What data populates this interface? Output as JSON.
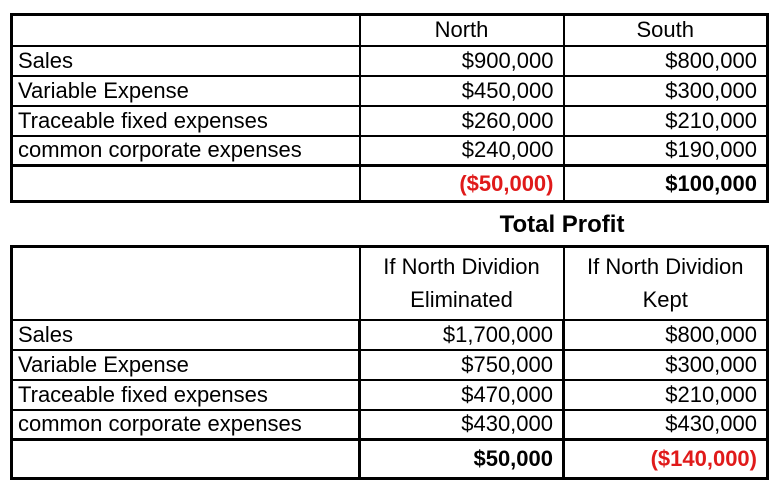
{
  "colors": {
    "negative_red": "#e01a1a",
    "text": "#000000",
    "border": "#000000",
    "background": "#ffffff"
  },
  "segment_table": {
    "column_headers": {
      "north": "North",
      "south": "South"
    },
    "rows": [
      {
        "label": "Sales",
        "north": "$900,000",
        "south": "$800,000"
      },
      {
        "label": "Variable Expense",
        "north": "$450,000",
        "south": "$300,000"
      },
      {
        "label": "Traceable fixed expenses",
        "north": "$260,000",
        "south": "$210,000"
      },
      {
        "label": "common corporate expenses",
        "north": "$240,000",
        "south": "$190,000"
      }
    ],
    "total_row": {
      "north": "($50,000)",
      "south": "$100,000"
    }
  },
  "total_profit_table": {
    "title": "Total Profit",
    "column_headers": {
      "eliminated": {
        "line1": "If North Dividion",
        "line2": "Eliminated"
      },
      "kept": {
        "line1": "If North Dividion",
        "line2": "Kept"
      }
    },
    "rows": [
      {
        "label": "Sales",
        "eliminated": "$1,700,000",
        "kept": "$800,000"
      },
      {
        "label": "Variable Expense",
        "eliminated": "$750,000",
        "kept": "$300,000"
      },
      {
        "label": "Traceable fixed expenses",
        "eliminated": "$470,000",
        "kept": "$210,000"
      },
      {
        "label": "common corporate expenses",
        "eliminated": "$430,000",
        "kept": "$430,000"
      }
    ],
    "total_row": {
      "eliminated": "$50,000",
      "kept": "($140,000)"
    }
  }
}
